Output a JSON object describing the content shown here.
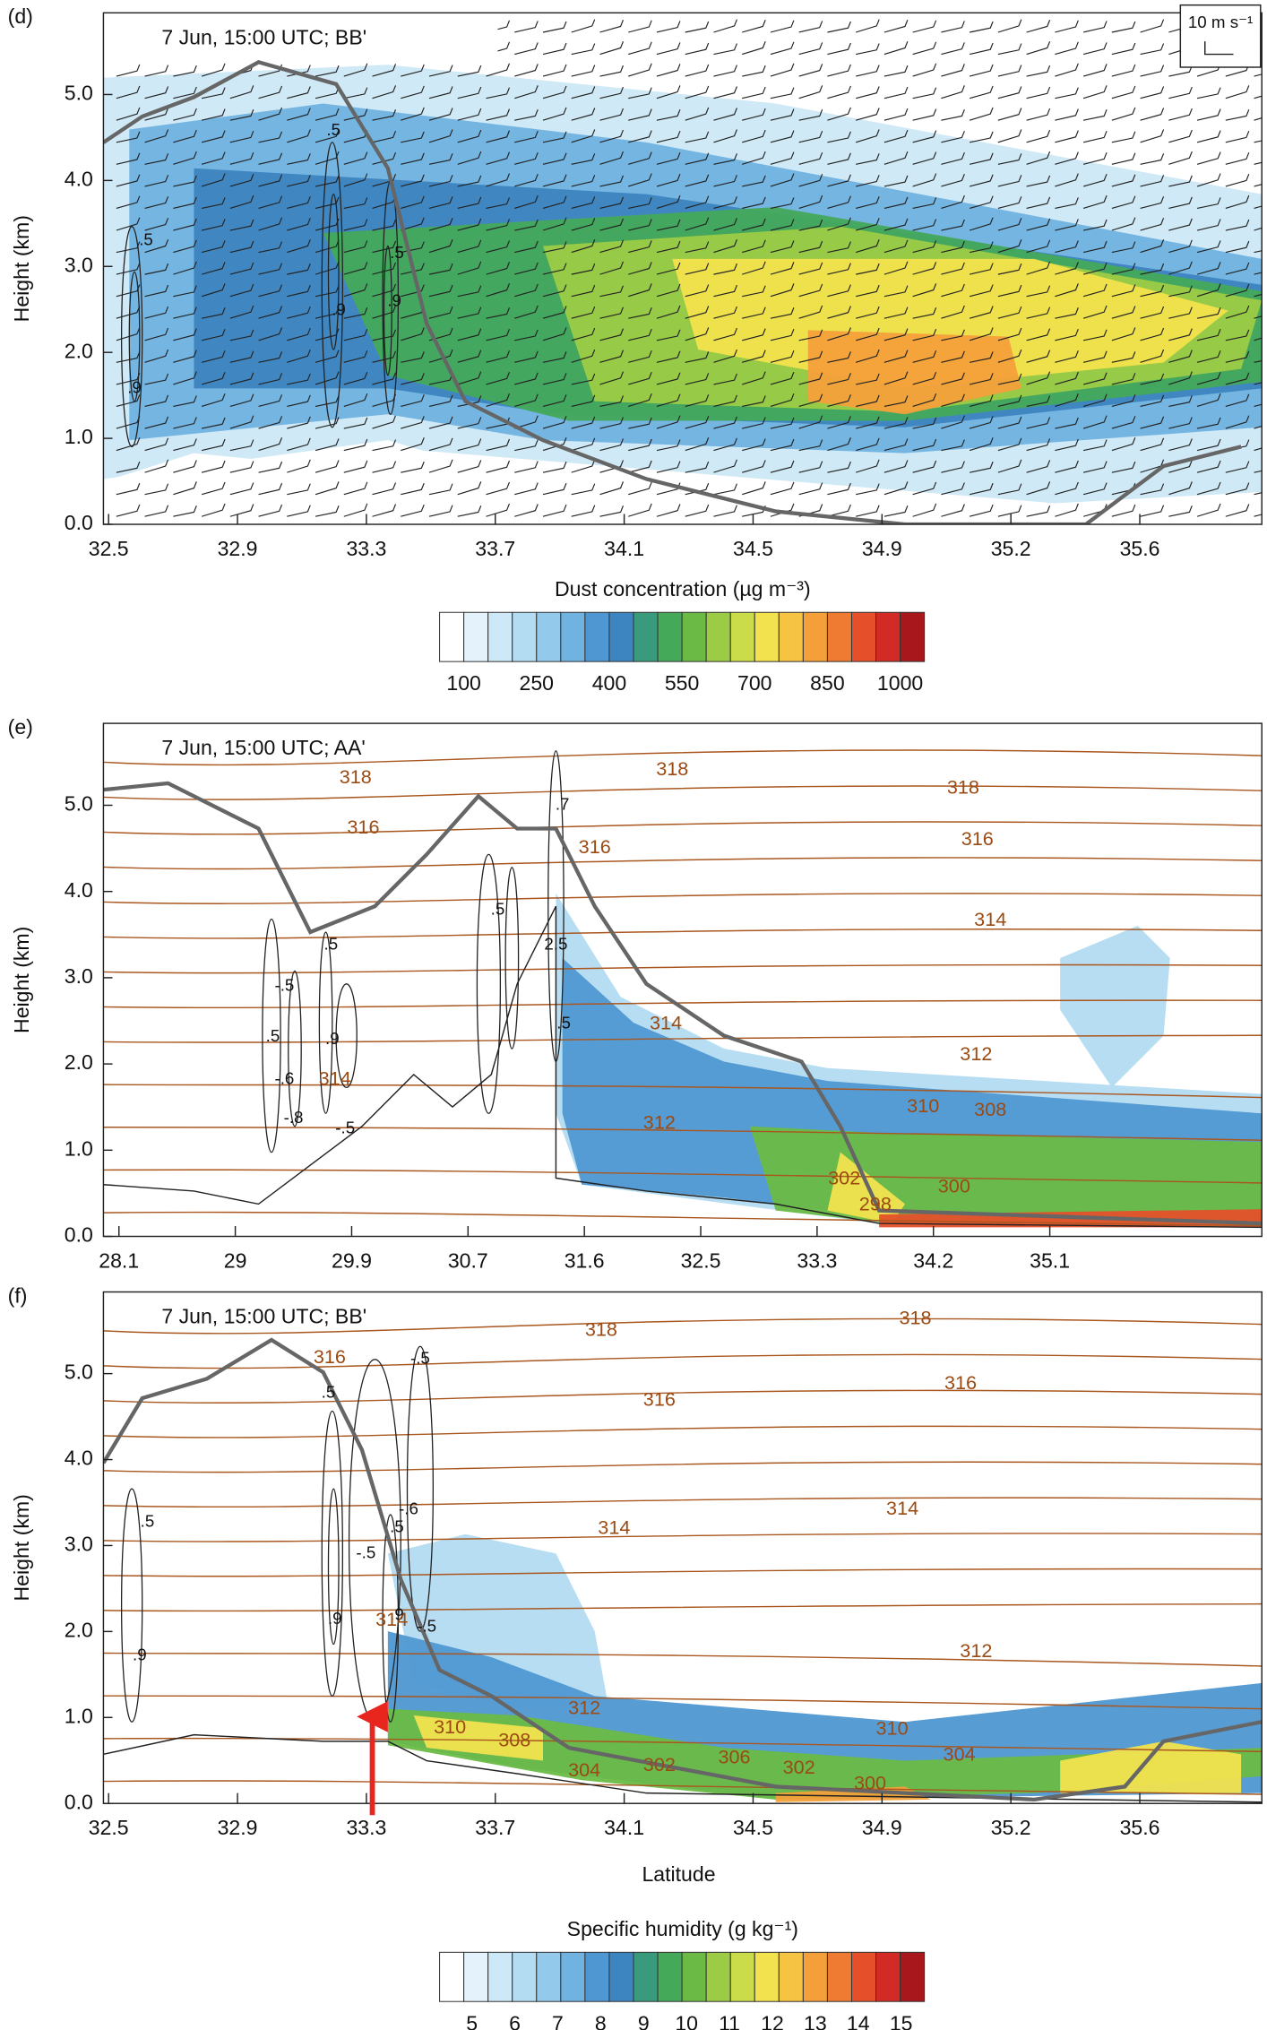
{
  "chart_data": [
    {
      "type": "cross-section",
      "label": "(d)",
      "title": "7 Jun, 15:00 UTC; BB'",
      "ylabel": "Height (km)",
      "ylim": [
        0,
        5.95
      ],
      "yticks": [
        {
          "value": 0,
          "label": "0.0"
        },
        {
          "value": 1,
          "label": "1.0"
        },
        {
          "value": 2,
          "label": "2.0"
        },
        {
          "value": 3,
          "label": "3.0"
        },
        {
          "value": 4,
          "label": "4.0"
        },
        {
          "value": 5,
          "label": "5.0"
        }
      ],
      "xticks": [
        32.5,
        32.9,
        33.3,
        33.7,
        34.1,
        34.5,
        34.9,
        35.2,
        35.6
      ],
      "wind_scale_label": "10 m s⁻¹",
      "contour_labels": [
        ".5",
        ".9",
        ".5",
        ".9",
        ".5",
        ".9"
      ],
      "colorbar": {
        "label": "Dust concentration (µg m⁻³)",
        "ticks": [
          100,
          250,
          400,
          550,
          700,
          850,
          1000
        ],
        "colors": [
          "#ffffff",
          "#e4f3fb",
          "#cde8f6",
          "#b3dbf1",
          "#93c9ea",
          "#70b2e0",
          "#4f97d2",
          "#3d85c0",
          "#3a9a7c",
          "#45a95a",
          "#6aba45",
          "#9ccb45",
          "#cbdc4a",
          "#f2e24d",
          "#f6c343",
          "#f3a03a",
          "#ef7a31",
          "#e5502a",
          "#d22b25",
          "#a8171b"
        ]
      }
    },
    {
      "type": "cross-section",
      "label": "(e)",
      "title": "7 Jun, 15:00 UTC; AA'",
      "ylabel": "Height (km)",
      "ylim": [
        0,
        5.95
      ],
      "yticks": [
        {
          "value": 0,
          "label": "0.0"
        },
        {
          "value": 1,
          "label": "1.0"
        },
        {
          "value": 2,
          "label": "2.0"
        },
        {
          "value": 3,
          "label": "3.0"
        },
        {
          "value": 4,
          "label": "4.0"
        },
        {
          "value": 5,
          "label": "5.0"
        }
      ],
      "xticks": [
        28.1,
        29.0,
        29.9,
        30.7,
        31.6,
        32.5,
        33.3,
        34.2,
        35.1
      ],
      "theta_labels": [
        318,
        316,
        318,
        316,
        318,
        316,
        314,
        314,
        312,
        312,
        310,
        308,
        300,
        302,
        298,
        314
      ],
      "contour_labels": [
        ".7",
        ".5",
        ".5",
        ".9",
        ".5",
        "2.5",
        ".5",
        "-.5",
        "-.6",
        "-.8",
        "-.5"
      ]
    },
    {
      "type": "cross-section",
      "label": "(f)",
      "title": "7 Jun, 15:00 UTC; BB'",
      "ylabel": "Height (km)",
      "xlabel": "Latitude",
      "ylim": [
        0,
        5.95
      ],
      "yticks": [
        {
          "value": 0,
          "label": "0.0"
        },
        {
          "value": 1,
          "label": "1.0"
        },
        {
          "value": 2,
          "label": "2.0"
        },
        {
          "value": 3,
          "label": "3.0"
        },
        {
          "value": 4,
          "label": "4.0"
        },
        {
          "value": 5,
          "label": "5.0"
        }
      ],
      "xticks": [
        32.5,
        32.9,
        33.3,
        33.7,
        34.1,
        34.5,
        34.9,
        35.2,
        35.6
      ],
      "theta_labels": [
        318,
        318,
        316,
        316,
        316,
        314,
        314,
        312,
        312,
        310,
        308,
        310,
        304,
        304,
        302,
        306,
        302,
        300,
        314
      ],
      "contour_labels": [
        ".5",
        ".5",
        ".9",
        ".9",
        ".5",
        ".9",
        "-.5",
        "-.6",
        "-.5",
        "-.5"
      ],
      "colorbar": {
        "label": "Specific humidity (g kg⁻¹)",
        "ticks": [
          5,
          6,
          7,
          8,
          9,
          10,
          11,
          12,
          13,
          14,
          15
        ],
        "colors": [
          "#ffffff",
          "#e4f3fb",
          "#cde8f6",
          "#b3dbf1",
          "#93c9ea",
          "#70b2e0",
          "#4f97d2",
          "#3d85c0",
          "#3a9a7c",
          "#45a95a",
          "#6aba45",
          "#9ccb45",
          "#cbdc4a",
          "#f2e24d",
          "#f6c343",
          "#f3a03a",
          "#ef7a31",
          "#e5502a",
          "#d22b25",
          "#a8171b"
        ]
      }
    }
  ]
}
